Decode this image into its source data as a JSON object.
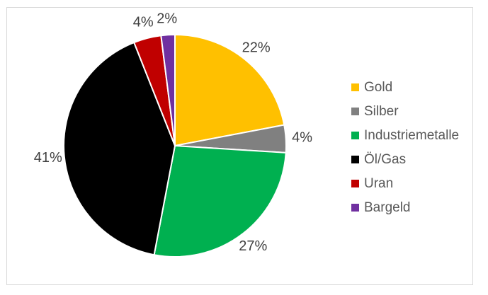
{
  "chart_data": {
    "type": "pie",
    "title": "",
    "categories": [
      "Gold",
      "Silber",
      "Industriemetalle",
      "Öl/Gas",
      "Uran",
      "Bargeld"
    ],
    "values": [
      22,
      4,
      27,
      41,
      4,
      2
    ],
    "series": [
      {
        "key": "gold",
        "name": "Gold",
        "value": 22,
        "label": "22%",
        "color": "#FFC000"
      },
      {
        "key": "silber",
        "name": "Silber",
        "value": 4,
        "label": "4%",
        "color": "#808080"
      },
      {
        "key": "industriemetalle",
        "name": "Industriemetalle",
        "value": 27,
        "label": "27%",
        "color": "#00B050"
      },
      {
        "key": "oel-gas",
        "name": "Öl/Gas",
        "value": 41,
        "label": "41%",
        "color": "#000000"
      },
      {
        "key": "uran",
        "name": "Uran",
        "value": 4,
        "label": "4%",
        "color": "#C00000"
      },
      {
        "key": "bargeld",
        "name": "Bargeld",
        "value": 2,
        "label": "2%",
        "color": "#7030A0"
      }
    ],
    "start_angle_deg": 0,
    "direction": "clockwise",
    "data_labels": "outside-percent",
    "legend_position": "right",
    "label_color": "#404040",
    "legend_text_color": "#595959",
    "slice_border_color": "#FFFFFF",
    "frame_border_color": "#D9D9D9",
    "background": "#FFFFFF"
  }
}
